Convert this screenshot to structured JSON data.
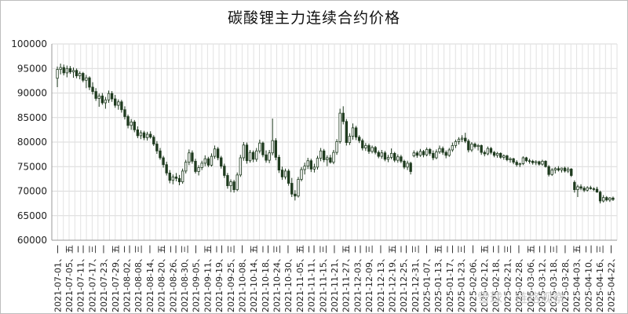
{
  "chart_data": {
    "type": "candlestick",
    "title": "碳酸锂主力连续合约价格",
    "xlabel": "",
    "ylabel": "",
    "ylim": [
      60000,
      100000
    ],
    "yticks": [
      "100000",
      "95000",
      "90000",
      "85000",
      "80000",
      "75000",
      "70000",
      "65000",
      "60000"
    ],
    "grid": true,
    "up_color": "#ffffff",
    "down_color": "#1f3b1f",
    "x_tick_labels": [
      "2021-07-01、一",
      "2021-07-05、五",
      "2021-07-11、二",
      "2021-07-17、三",
      "2021-07-23、一",
      "2021-07-29、五",
      "2021-08-02、二",
      "2021-08-08、三",
      "2021-08-14、一",
      "2021-08-20、五",
      "2021-08-26、二",
      "2021-08-30、三",
      "2021-09-05、一",
      "2021-09-11、五",
      "2021-09-19、二",
      "2021-09-25、三",
      "2021-10-08、一",
      "2021-10-14、五",
      "2021-10-18、二",
      "2021-10-24、三",
      "2021-10-30、一",
      "2021-11-05、五",
      "2021-11-11、二",
      "2021-11-15、三",
      "2021-11-21、一",
      "2021-11-27、五",
      "2021-12-03、二",
      "2021-12-09、三",
      "2021-12-13、一",
      "2021-12-19、五",
      "2021-12-25、二",
      "2021-12-31、三",
      "2025-01-07、一",
      "2025-01-13、五",
      "2025-01-17、二",
      "2025-01-23、三",
      "2025-02-06、一",
      "2025-02-12、五",
      "2025-02-18、二",
      "2025-02-21、三",
      "2025-02-28、一",
      "2025-03-06、五",
      "2025-03-12、二",
      "2025-03-18、三",
      "2025-03-28、一",
      "2025-04-03、五",
      "2025-04-10、二",
      "2025-04-16、三",
      "2025-04-22、一"
    ],
    "series": [
      {
        "values": [
          [
            93000,
            95400,
            91200,
            94800
          ],
          [
            94800,
            96000,
            93800,
            95200
          ],
          [
            95200,
            95800,
            93600,
            94100
          ],
          [
            94100,
            95600,
            93200,
            95000
          ],
          [
            95000,
            95500,
            93900,
            94300
          ],
          [
            94300,
            95200,
            93100,
            94600
          ],
          [
            94600,
            95000,
            93000,
            93500
          ],
          [
            93500,
            94400,
            92800,
            94000
          ],
          [
            94000,
            94300,
            92200,
            92600
          ],
          [
            92600,
            93700,
            91000,
            93100
          ],
          [
            93100,
            93400,
            90600,
            91200
          ],
          [
            91200,
            92200,
            89700,
            90300
          ],
          [
            90300,
            91000,
            88400,
            88900
          ],
          [
            88900,
            89900,
            87200,
            89400
          ],
          [
            89400,
            90000,
            87600,
            88000
          ],
          [
            88000,
            89200,
            86800,
            88600
          ],
          [
            88600,
            90500,
            88000,
            89900
          ],
          [
            89900,
            90400,
            88200,
            88800
          ],
          [
            88800,
            89600,
            87000,
            87500
          ],
          [
            87500,
            88700,
            86600,
            88200
          ],
          [
            88200,
            88600,
            86000,
            86600
          ],
          [
            86600,
            87300,
            84600,
            85200
          ],
          [
            85200,
            85600,
            82800,
            83400
          ],
          [
            83400,
            84700,
            82500,
            84100
          ],
          [
            84100,
            84500,
            82000,
            82500
          ],
          [
            82500,
            83200,
            80800,
            81300
          ],
          [
            81300,
            82400,
            80600,
            81900
          ],
          [
            81900,
            82300,
            80400,
            80900
          ],
          [
            80900,
            82100,
            80300,
            81600
          ],
          [
            81600,
            82200,
            80700,
            81000
          ],
          [
            81000,
            81400,
            79200,
            79600
          ],
          [
            79600,
            80200,
            77600,
            78200
          ],
          [
            78200,
            78800,
            76400,
            76800
          ],
          [
            76800,
            77200,
            74800,
            75400
          ],
          [
            75400,
            76000,
            73200,
            73700
          ],
          [
            73700,
            74300,
            71600,
            72200
          ],
          [
            72200,
            73400,
            71400,
            72900
          ],
          [
            72900,
            73700,
            72000,
            72600
          ],
          [
            72600,
            73300,
            71200,
            71900
          ],
          [
            71900,
            74600,
            71500,
            74100
          ],
          [
            74100,
            76400,
            73600,
            75900
          ],
          [
            75900,
            78500,
            75300,
            77800
          ],
          [
            77800,
            78300,
            75600,
            76100
          ],
          [
            76100,
            76600,
            73600,
            74000
          ],
          [
            74000,
            75300,
            73200,
            74800
          ],
          [
            74800,
            76200,
            74300,
            75700
          ],
          [
            75700,
            77300,
            75100,
            76600
          ],
          [
            76600,
            77000,
            74900,
            75300
          ],
          [
            75300,
            77700,
            75000,
            77100
          ],
          [
            77100,
            79300,
            76600,
            78600
          ],
          [
            78600,
            79000,
            76300,
            76800
          ],
          [
            76800,
            77200,
            74600,
            75100
          ],
          [
            75100,
            75600,
            72700,
            73200
          ],
          [
            73200,
            73700,
            70500,
            71100
          ],
          [
            71100,
            72400,
            69800,
            71900
          ],
          [
            71900,
            72300,
            69700,
            70300
          ],
          [
            70300,
            73800,
            70000,
            73300
          ],
          [
            73300,
            77400,
            72900,
            76800
          ],
          [
            76800,
            80000,
            76200,
            79400
          ],
          [
            79400,
            79900,
            75600,
            76200
          ],
          [
            76200,
            78400,
            75800,
            77900
          ],
          [
            77900,
            78300,
            75900,
            76500
          ],
          [
            76500,
            78800,
            76000,
            78200
          ],
          [
            78200,
            80500,
            77700,
            79800
          ],
          [
            79800,
            80100,
            76900,
            77400
          ],
          [
            77400,
            78300,
            75800,
            76300
          ],
          [
            76300,
            78400,
            75700,
            77800
          ],
          [
            77800,
            84800,
            77300,
            80300
          ],
          [
            80300,
            80800,
            76300,
            76900
          ],
          [
            76900,
            77400,
            73700,
            74300
          ],
          [
            74300,
            75000,
            72300,
            72900
          ],
          [
            72900,
            74600,
            72400,
            74100
          ],
          [
            74100,
            74500,
            71100,
            71600
          ],
          [
            71600,
            72700,
            68800,
            69400
          ],
          [
            69400,
            70200,
            68100,
            69000
          ],
          [
            69000,
            72900,
            68700,
            72400
          ],
          [
            72400,
            74900,
            72000,
            74400
          ],
          [
            74400,
            75800,
            73400,
            75100
          ],
          [
            75100,
            76800,
            74500,
            76200
          ],
          [
            76200,
            76600,
            73900,
            74500
          ],
          [
            74500,
            75600,
            73800,
            74900
          ],
          [
            74900,
            77200,
            74400,
            76700
          ],
          [
            76700,
            78800,
            76100,
            78200
          ],
          [
            78200,
            78600,
            75900,
            76400
          ],
          [
            76400,
            77300,
            75100,
            76800
          ],
          [
            76800,
            77400,
            75600,
            75900
          ],
          [
            75900,
            78400,
            75500,
            77900
          ],
          [
            77900,
            80600,
            77400,
            80100
          ],
          [
            80100,
            86800,
            79700,
            85900
          ],
          [
            85900,
            87300,
            83600,
            84200
          ],
          [
            84200,
            84700,
            79300,
            79900
          ],
          [
            79900,
            81800,
            79400,
            81200
          ],
          [
            81200,
            83800,
            80500,
            82900
          ],
          [
            82900,
            83300,
            80400,
            81000
          ],
          [
            81000,
            81400,
            79800,
            80300
          ],
          [
            80300,
            80700,
            78300,
            78800
          ],
          [
            78800,
            79800,
            78200,
            79300
          ],
          [
            79300,
            79700,
            77600,
            78100
          ],
          [
            78100,
            79300,
            77700,
            78900
          ],
          [
            78900,
            79200,
            77500,
            77900
          ],
          [
            77900,
            78300,
            76700,
            77100
          ],
          [
            77100,
            78400,
            76600,
            77800
          ],
          [
            77800,
            78200,
            76100,
            76500
          ],
          [
            76500,
            77400,
            75900,
            76900
          ],
          [
            76900,
            78700,
            76500,
            77700
          ],
          [
            77700,
            78000,
            75900,
            76300
          ],
          [
            76300,
            77500,
            75800,
            77000
          ],
          [
            77000,
            77400,
            75700,
            76100
          ],
          [
            76100,
            76400,
            74500,
            74900
          ],
          [
            74900,
            76200,
            74300,
            75700
          ],
          [
            75700,
            76000,
            73400,
            74000
          ],
          [
            77200,
            78300,
            76900,
            77800
          ],
          [
            77800,
            78200,
            76800,
            77300
          ],
          [
            77300,
            78600,
            77000,
            78100
          ],
          [
            78100,
            78400,
            76900,
            77400
          ],
          [
            77400,
            78900,
            77100,
            78500
          ],
          [
            78500,
            78800,
            77200,
            77700
          ],
          [
            77700,
            78300,
            76300,
            76800
          ],
          [
            76800,
            78500,
            76500,
            78000
          ],
          [
            78000,
            79300,
            77600,
            78700
          ],
          [
            78700,
            79100,
            77400,
            77900
          ],
          [
            77900,
            78300,
            76700,
            77300
          ],
          [
            77300,
            78800,
            77000,
            78400
          ],
          [
            78400,
            79900,
            78000,
            79300
          ],
          [
            79300,
            80500,
            78800,
            80100
          ],
          [
            80100,
            81000,
            79500,
            80600
          ],
          [
            80600,
            81400,
            80000,
            80800
          ],
          [
            80800,
            81900,
            79800,
            80200
          ],
          [
            80200,
            80600,
            77900,
            78400
          ],
          [
            78400,
            80000,
            78000,
            79600
          ],
          [
            79600,
            79900,
            78700,
            79100
          ],
          [
            79100,
            79600,
            78300,
            79300
          ],
          [
            79300,
            79500,
            77400,
            77900
          ],
          [
            77900,
            78300,
            77100,
            77600
          ],
          [
            77600,
            79100,
            77300,
            78700
          ],
          [
            78700,
            79000,
            77500,
            77900
          ],
          [
            77900,
            78200,
            76900,
            77300
          ],
          [
            77300,
            78000,
            76800,
            77700
          ],
          [
            77700,
            77900,
            76600,
            76900
          ],
          [
            76900,
            77500,
            76400,
            77200
          ],
          [
            77200,
            77400,
            76100,
            76400
          ],
          [
            76400,
            76900,
            75800,
            76600
          ],
          [
            76600,
            76800,
            75500,
            75900
          ],
          [
            75900,
            76300,
            75000,
            75400
          ],
          [
            75400,
            75800,
            74900,
            75600
          ],
          [
            75600,
            77100,
            75300,
            76800
          ],
          [
            76800,
            77000,
            75900,
            76200
          ],
          [
            76200,
            76600,
            75600,
            76100
          ],
          [
            76100,
            76400,
            75400,
            75800
          ],
          [
            75800,
            76300,
            75300,
            76000
          ],
          [
            76000,
            76200,
            75200,
            75500
          ],
          [
            75500,
            76400,
            75200,
            76100
          ],
          [
            76100,
            76300,
            74800,
            75000
          ],
          [
            75000,
            75300,
            73000,
            73400
          ],
          [
            73400,
            74700,
            73100,
            74300
          ],
          [
            74300,
            74900,
            73600,
            74600
          ],
          [
            74600,
            75100,
            74000,
            74300
          ],
          [
            74300,
            74800,
            73800,
            74700
          ],
          [
            74700,
            75000,
            73800,
            74100
          ],
          [
            74100,
            74900,
            73700,
            74500
          ],
          [
            74500,
            74700,
            72900,
            73200
          ],
          [
            71800,
            72200,
            69700,
            70300
          ],
          [
            70300,
            71300,
            68800,
            70900
          ],
          [
            70900,
            71400,
            70200,
            70600
          ],
          [
            70600,
            71000,
            69800,
            70200
          ],
          [
            70200,
            71000,
            69900,
            70700
          ],
          [
            70700,
            71100,
            70300,
            70500
          ],
          [
            70500,
            70800,
            70000,
            70400
          ],
          [
            70400,
            70900,
            69700,
            69800
          ],
          [
            69800,
            70100,
            67500,
            68000
          ],
          [
            68000,
            69200,
            67700,
            68700
          ],
          [
            68700,
            69000,
            67900,
            68200
          ],
          [
            68200,
            68800,
            67800,
            68600
          ],
          [
            68600,
            68900,
            68000,
            68300
          ]
        ]
      }
    ]
  },
  "watermark_text": "雪球：链路观察"
}
